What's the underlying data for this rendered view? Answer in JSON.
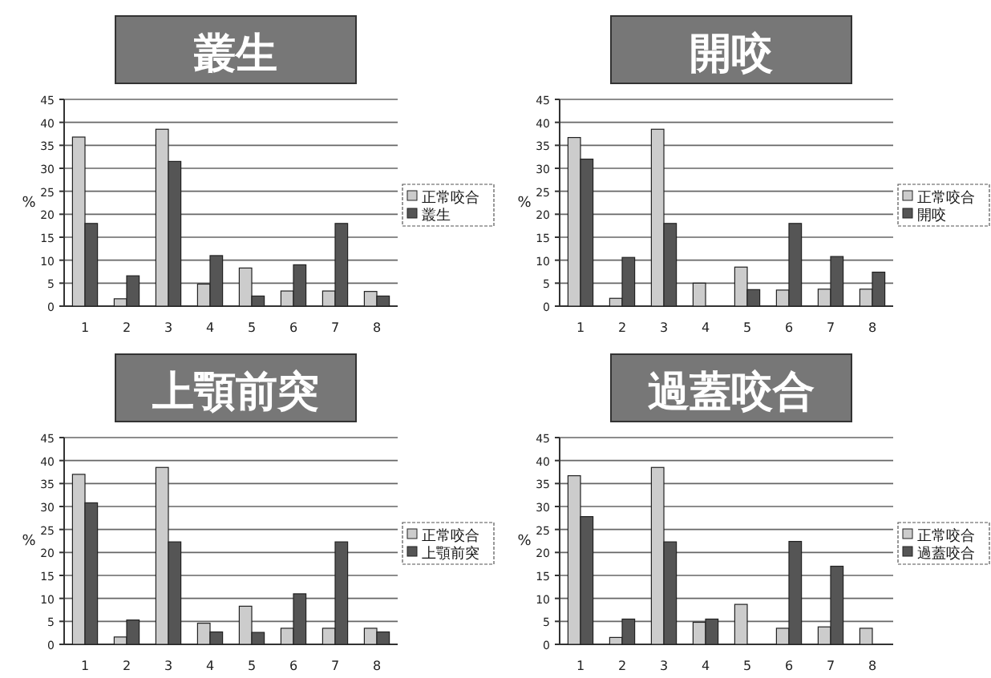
{
  "chart_data": [
    {
      "type": "bar",
      "title": "叢生",
      "ylabel": "%",
      "categories": [
        "1",
        "2",
        "3",
        "4",
        "5",
        "6",
        "7",
        "8"
      ],
      "ylim": [
        0,
        45
      ],
      "yticks": [
        0,
        5,
        10,
        15,
        20,
        25,
        30,
        35,
        40,
        45
      ],
      "grid": "y",
      "legend": "right",
      "series": [
        {
          "name": "正常咬合",
          "color": "#cccccc",
          "values": [
            36.8,
            1.6,
            38.5,
            4.8,
            8.3,
            3.3,
            3.3,
            3.2
          ]
        },
        {
          "name": "叢生",
          "color": "#555555",
          "values": [
            18,
            6.6,
            31.5,
            11,
            2.2,
            9,
            18,
            2.2
          ]
        }
      ]
    },
    {
      "type": "bar",
      "title": "開咬",
      "ylabel": "%",
      "categories": [
        "1",
        "2",
        "3",
        "4",
        "5",
        "6",
        "7",
        "8"
      ],
      "ylim": [
        0,
        45
      ],
      "yticks": [
        0,
        5,
        10,
        15,
        20,
        25,
        30,
        35,
        40,
        45
      ],
      "grid": "y",
      "legend": "right",
      "series": [
        {
          "name": "正常咬合",
          "color": "#cccccc",
          "values": [
            36.7,
            1.7,
            38.5,
            5,
            8.5,
            3.5,
            3.7,
            3.7
          ]
        },
        {
          "name": "開咬",
          "color": "#555555",
          "values": [
            32,
            10.6,
            18,
            0,
            3.6,
            18,
            10.8,
            7.4
          ]
        }
      ]
    },
    {
      "type": "bar",
      "title": "上顎前突",
      "ylabel": "%",
      "categories": [
        "1",
        "2",
        "3",
        "4",
        "5",
        "6",
        "7",
        "8"
      ],
      "ylim": [
        0,
        45
      ],
      "yticks": [
        0,
        5,
        10,
        15,
        20,
        25,
        30,
        35,
        40,
        45
      ],
      "grid": "y",
      "legend": "right",
      "series": [
        {
          "name": "正常咬合",
          "color": "#cccccc",
          "values": [
            37,
            1.6,
            38.5,
            4.6,
            8.3,
            3.5,
            3.5,
            3.5
          ]
        },
        {
          "name": "上顎前突",
          "color": "#555555",
          "values": [
            30.8,
            5.3,
            22.3,
            2.7,
            2.6,
            11,
            22.3,
            2.7
          ]
        }
      ]
    },
    {
      "type": "bar",
      "title": "過蓋咬合",
      "ylabel": "%",
      "categories": [
        "1",
        "2",
        "3",
        "4",
        "5",
        "6",
        "7",
        "8"
      ],
      "ylim": [
        0,
        45
      ],
      "yticks": [
        0,
        5,
        10,
        15,
        20,
        25,
        30,
        35,
        40,
        45
      ],
      "grid": "y",
      "legend": "right",
      "series": [
        {
          "name": "正常咬合",
          "color": "#cccccc",
          "values": [
            36.7,
            1.5,
            38.5,
            4.8,
            8.7,
            3.5,
            3.8,
            3.5
          ]
        },
        {
          "name": "過蓋咬合",
          "color": "#555555",
          "values": [
            27.8,
            5.5,
            22.3,
            5.5,
            0,
            22.4,
            17,
            0
          ]
        }
      ]
    }
  ]
}
